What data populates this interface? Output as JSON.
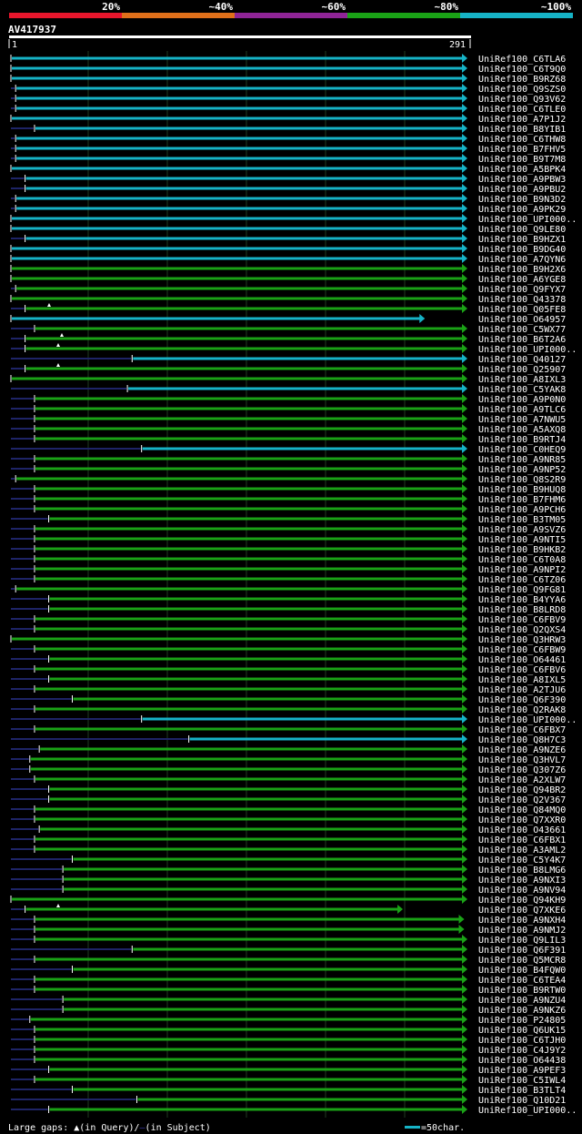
{
  "legend": {
    "items": [
      {
        "label": "20%",
        "color": "#e8162c"
      },
      {
        "label": "~40%",
        "color": "#e0701a"
      },
      {
        "label": "~60%",
        "color": "#8f2496"
      },
      {
        "label": "~80%",
        "color": "#1aa216"
      },
      {
        "label": "~100%",
        "color": "#16b3c6"
      }
    ]
  },
  "query": {
    "id": "AV417937",
    "length_start": "1",
    "length_end": "291"
  },
  "footer": {
    "gaps_label": "Large gaps: ",
    "gap_query": "(in Query)/",
    "gap_subject": "(in Subject)",
    "scale_label": "=50char."
  },
  "chart_data": {
    "type": "alignment",
    "xlim": [
      1,
      291
    ],
    "series": [
      {
        "name": "UniRef100_C6TLA6",
        "start": 1,
        "end": 291,
        "identity": 100
      },
      {
        "name": "UniRef100_C6T9Q0",
        "start": 1,
        "end": 291,
        "identity": 100
      },
      {
        "name": "UniRef100_B9RZ68",
        "start": 1,
        "end": 291,
        "identity": 100
      },
      {
        "name": "UniRef100_Q9SZS0",
        "start": 4,
        "end": 291,
        "identity": 100
      },
      {
        "name": "UniRef100_Q93V62",
        "start": 4,
        "end": 291,
        "identity": 100
      },
      {
        "name": "UniRef100_C6TLE0",
        "start": 4,
        "end": 291,
        "identity": 100
      },
      {
        "name": "UniRef100_A7P1J2",
        "start": 1,
        "end": 291,
        "identity": 100
      },
      {
        "name": "UniRef100_B8YIB1",
        "start": 16,
        "end": 291,
        "identity": 100
      },
      {
        "name": "UniRef100_C6THW8",
        "start": 4,
        "end": 291,
        "identity": 100
      },
      {
        "name": "UniRef100_B7FHV5",
        "start": 4,
        "end": 291,
        "identity": 100
      },
      {
        "name": "UniRef100_B9T7M8",
        "start": 4,
        "end": 291,
        "identity": 100
      },
      {
        "name": "UniRef100_A5BPK4",
        "start": 1,
        "end": 291,
        "identity": 100
      },
      {
        "name": "UniRef100_A9PBW3",
        "start": 10,
        "end": 291,
        "identity": 100
      },
      {
        "name": "UniRef100_A9PBU2",
        "start": 10,
        "end": 291,
        "identity": 100
      },
      {
        "name": "UniRef100_B9N3D2",
        "start": 4,
        "end": 291,
        "identity": 100
      },
      {
        "name": "UniRef100_A9PK29",
        "start": 4,
        "end": 291,
        "identity": 100
      },
      {
        "name": "UniRef100_UPI000..",
        "start": 1,
        "end": 291,
        "identity": 100
      },
      {
        "name": "UniRef100_Q9LE80",
        "start": 1,
        "end": 291,
        "identity": 100
      },
      {
        "name": "UniRef100_B9HZX1",
        "start": 10,
        "end": 291,
        "identity": 100
      },
      {
        "name": "UniRef100_B9DG40",
        "start": 1,
        "end": 291,
        "identity": 100
      },
      {
        "name": "UniRef100_A7QYN6",
        "start": 1,
        "end": 291,
        "identity": 100
      },
      {
        "name": "UniRef100_B9H2X6",
        "start": 1,
        "end": 291,
        "identity": 80
      },
      {
        "name": "UniRef100_A6YGE8",
        "start": 1,
        "end": 291,
        "identity": 80
      },
      {
        "name": "UniRef100_Q9FYX7",
        "start": 4,
        "end": 291,
        "identity": 80
      },
      {
        "name": "UniRef100_Q43378",
        "start": 1,
        "end": 291,
        "identity": 80
      },
      {
        "name": "UniRef100_Q05FE8",
        "start": 10,
        "end": 291,
        "identity": 80
      },
      {
        "name": "UniRef100_O64957",
        "start": 1,
        "end": 264,
        "identity": 100
      },
      {
        "name": "UniRef100_C5WX77",
        "start": 16,
        "end": 291,
        "identity": 80
      },
      {
        "name": "UniRef100_B6T2A6",
        "start": 10,
        "end": 291,
        "identity": 80
      },
      {
        "name": "UniRef100_UPI000..",
        "start": 10,
        "end": 291,
        "identity": 80
      },
      {
        "name": "UniRef100_Q40127",
        "start": 78,
        "end": 291,
        "identity": 100
      },
      {
        "name": "UniRef100_Q25907",
        "start": 10,
        "end": 291,
        "identity": 80
      },
      {
        "name": "UniRef100_A8IXL3",
        "start": 1,
        "end": 291,
        "identity": 80
      },
      {
        "name": "UniRef100_C5YAK8",
        "start": 75,
        "end": 291,
        "identity": 100
      },
      {
        "name": "UniRef100_A9P0N0",
        "start": 16,
        "end": 291,
        "identity": 80
      },
      {
        "name": "UniRef100_A9TLC6",
        "start": 16,
        "end": 291,
        "identity": 80
      },
      {
        "name": "UniRef100_A7NWU5",
        "start": 16,
        "end": 291,
        "identity": 80
      },
      {
        "name": "UniRef100_A5AXQ8",
        "start": 16,
        "end": 291,
        "identity": 80
      },
      {
        "name": "UniRef100_B9RTJ4",
        "start": 16,
        "end": 291,
        "identity": 80
      },
      {
        "name": "UniRef100_C0HEQ9",
        "start": 84,
        "end": 291,
        "identity": 100
      },
      {
        "name": "UniRef100_A9NR85",
        "start": 16,
        "end": 291,
        "identity": 80
      },
      {
        "name": "UniRef100_A9NP52",
        "start": 16,
        "end": 291,
        "identity": 80
      },
      {
        "name": "UniRef100_Q8S2R9",
        "start": 4,
        "end": 291,
        "identity": 80
      },
      {
        "name": "UniRef100_B9HUQ8",
        "start": 16,
        "end": 291,
        "identity": 80
      },
      {
        "name": "UniRef100_B7FHM6",
        "start": 16,
        "end": 291,
        "identity": 80
      },
      {
        "name": "UniRef100_A9PCH6",
        "start": 16,
        "end": 291,
        "identity": 80
      },
      {
        "name": "UniRef100_B3TM05",
        "start": 25,
        "end": 291,
        "identity": 80
      },
      {
        "name": "UniRef100_A9SVZ6",
        "start": 16,
        "end": 291,
        "identity": 80
      },
      {
        "name": "UniRef100_A9NTI5",
        "start": 16,
        "end": 291,
        "identity": 80
      },
      {
        "name": "UniRef100_B9HKB2",
        "start": 16,
        "end": 291,
        "identity": 80
      },
      {
        "name": "UniRef100_C6T0A8",
        "start": 16,
        "end": 291,
        "identity": 80
      },
      {
        "name": "UniRef100_A9NPI2",
        "start": 16,
        "end": 291,
        "identity": 80
      },
      {
        "name": "UniRef100_C6TZ06",
        "start": 16,
        "end": 291,
        "identity": 80
      },
      {
        "name": "UniRef100_Q9FG81",
        "start": 4,
        "end": 291,
        "identity": 80
      },
      {
        "name": "UniRef100_B4YYA6",
        "start": 25,
        "end": 291,
        "identity": 80
      },
      {
        "name": "UniRef100_B8LRD8",
        "start": 25,
        "end": 291,
        "identity": 80
      },
      {
        "name": "UniRef100_C6FBV9",
        "start": 16,
        "end": 291,
        "identity": 80
      },
      {
        "name": "UniRef100_Q2QXS4",
        "start": 16,
        "end": 291,
        "identity": 80
      },
      {
        "name": "UniRef100_Q3HRW3",
        "start": 1,
        "end": 291,
        "identity": 80
      },
      {
        "name": "UniRef100_C6FBW9",
        "start": 16,
        "end": 291,
        "identity": 80
      },
      {
        "name": "UniRef100_O64461",
        "start": 25,
        "end": 291,
        "identity": 80
      },
      {
        "name": "UniRef100_C6FBV6",
        "start": 16,
        "end": 291,
        "identity": 80
      },
      {
        "name": "UniRef100_A8IXL5",
        "start": 25,
        "end": 291,
        "identity": 80
      },
      {
        "name": "UniRef100_A2TJU6",
        "start": 16,
        "end": 291,
        "identity": 80
      },
      {
        "name": "UniRef100_Q6F390",
        "start": 40,
        "end": 291,
        "identity": 80
      },
      {
        "name": "UniRef100_Q2RAK8",
        "start": 16,
        "end": 291,
        "identity": 80
      },
      {
        "name": "UniRef100_UPI000..",
        "start": 84,
        "end": 291,
        "identity": 100
      },
      {
        "name": "UniRef100_C6FBX7",
        "start": 16,
        "end": 291,
        "identity": 80
      },
      {
        "name": "UniRef100_Q8H7C3",
        "start": 114,
        "end": 291,
        "identity": 100
      },
      {
        "name": "UniRef100_A9NZE6",
        "start": 19,
        "end": 291,
        "identity": 80
      },
      {
        "name": "UniRef100_Q3HVL7",
        "start": 13,
        "end": 291,
        "identity": 80
      },
      {
        "name": "UniRef100_Q307Z6",
        "start": 13,
        "end": 291,
        "identity": 80
      },
      {
        "name": "UniRef100_A2XLW7",
        "start": 16,
        "end": 291,
        "identity": 80
      },
      {
        "name": "UniRef100_Q94BR2",
        "start": 25,
        "end": 291,
        "identity": 80
      },
      {
        "name": "UniRef100_Q2V367",
        "start": 25,
        "end": 291,
        "identity": 80
      },
      {
        "name": "UniRef100_Q84MQ0",
        "start": 16,
        "end": 291,
        "identity": 80
      },
      {
        "name": "UniRef100_Q7XXR0",
        "start": 16,
        "end": 291,
        "identity": 80
      },
      {
        "name": "UniRef100_O43661",
        "start": 19,
        "end": 291,
        "identity": 80
      },
      {
        "name": "UniRef100_C6FBX1",
        "start": 16,
        "end": 291,
        "identity": 80
      },
      {
        "name": "UniRef100_A3AML2",
        "start": 16,
        "end": 291,
        "identity": 80
      },
      {
        "name": "UniRef100_C5Y4K7",
        "start": 40,
        "end": 291,
        "identity": 80
      },
      {
        "name": "UniRef100_B8LMG6",
        "start": 34,
        "end": 291,
        "identity": 80
      },
      {
        "name": "UniRef100_A9NXI3",
        "start": 34,
        "end": 291,
        "identity": 80
      },
      {
        "name": "UniRef100_A9NV94",
        "start": 34,
        "end": 291,
        "identity": 80
      },
      {
        "name": "UniRef100_Q94KH9",
        "start": 1,
        "end": 291,
        "identity": 80
      },
      {
        "name": "UniRef100_Q7XKE6",
        "start": 10,
        "end": 250,
        "identity": 80
      },
      {
        "name": "UniRef100_A9NXH4",
        "start": 16,
        "end": 289,
        "identity": 80
      },
      {
        "name": "UniRef100_A9NMJ2",
        "start": 16,
        "end": 289,
        "identity": 80
      },
      {
        "name": "UniRef100_Q9LIL3",
        "start": 16,
        "end": 291,
        "identity": 80
      },
      {
        "name": "UniRef100_Q6F391",
        "start": 78,
        "end": 291,
        "identity": 80
      },
      {
        "name": "UniRef100_Q5MCR8",
        "start": 16,
        "end": 291,
        "identity": 80
      },
      {
        "name": "UniRef100_B4FQW0",
        "start": 40,
        "end": 291,
        "identity": 80
      },
      {
        "name": "UniRef100_C6TEA4",
        "start": 16,
        "end": 291,
        "identity": 80
      },
      {
        "name": "UniRef100_B9RTW0",
        "start": 16,
        "end": 291,
        "identity": 80
      },
      {
        "name": "UniRef100_A9NZU4",
        "start": 34,
        "end": 291,
        "identity": 80
      },
      {
        "name": "UniRef100_A9NKZ6",
        "start": 34,
        "end": 291,
        "identity": 80
      },
      {
        "name": "UniRef100_P24805",
        "start": 13,
        "end": 291,
        "identity": 80
      },
      {
        "name": "UniRef100_Q6UK15",
        "start": 16,
        "end": 291,
        "identity": 80
      },
      {
        "name": "UniRef100_C6TJH0",
        "start": 16,
        "end": 291,
        "identity": 80
      },
      {
        "name": "UniRef100_C4J9Y2",
        "start": 16,
        "end": 291,
        "identity": 80
      },
      {
        "name": "UniRef100_O64438",
        "start": 16,
        "end": 291,
        "identity": 80
      },
      {
        "name": "UniRef100_A9PEF3",
        "start": 25,
        "end": 291,
        "identity": 80
      },
      {
        "name": "UniRef100_C5IWL4",
        "start": 16,
        "end": 291,
        "identity": 80
      },
      {
        "name": "UniRef100_B3TLT4",
        "start": 40,
        "end": 291,
        "identity": 80
      },
      {
        "name": "UniRef100_Q10D21",
        "start": 81,
        "end": 291,
        "identity": 80
      },
      {
        "name": "UniRef100_UPI000..",
        "start": 25,
        "end": 291,
        "identity": 80
      }
    ],
    "query_gaps": [
      "UniRef100_Q05FE8",
      "UniRef100_B6T2A6",
      "UniRef100_UPI000..",
      "UniRef100_Q25907",
      "UniRef100_Q7XKE6"
    ]
  }
}
